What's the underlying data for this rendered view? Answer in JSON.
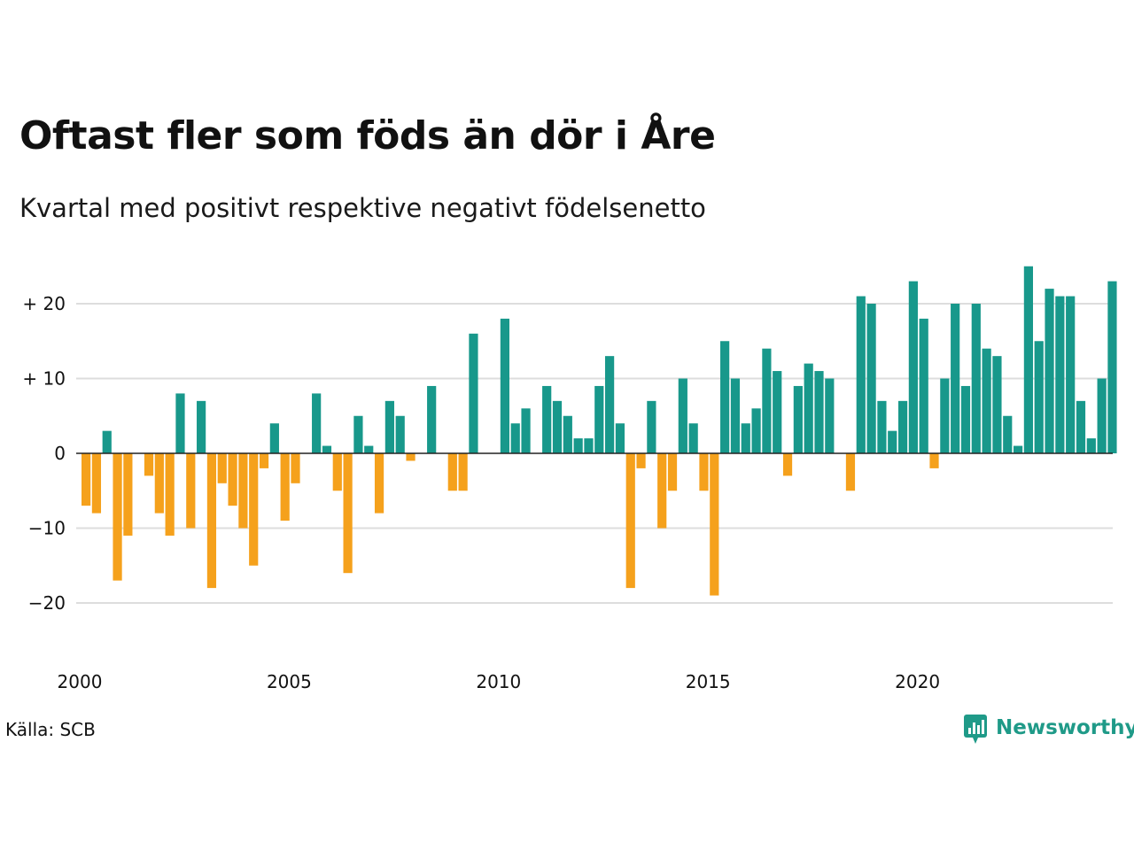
{
  "header": {
    "title": "Oftast fler som föds än dör i Åre",
    "subtitle": "Kvartal med positivt respektive negativt födelsenetto"
  },
  "footer": {
    "source": "Källa: SCB",
    "brand": "Newsworthy"
  },
  "colors": {
    "positive": "#18988b",
    "negative": "#f5a11c",
    "grid": "#dddddd",
    "zero_line": "#222222",
    "brand": "#1f9a88"
  },
  "chart_data": {
    "type": "bar",
    "title": "Oftast fler som föds än dör i Åre",
    "subtitle": "Kvartal med positivt respektive negativt födelsenetto",
    "xlabel": "",
    "ylabel": "",
    "x_start": "2000 Q1",
    "x_ticks": [
      "2000",
      "2005",
      "2010",
      "2015",
      "2020"
    ],
    "y_ticks": [
      {
        "value": 20,
        "label": "+ 20"
      },
      {
        "value": 10,
        "label": "+ 10"
      },
      {
        "value": 0,
        "label": "0"
      },
      {
        "value": -10,
        "label": "−10"
      },
      {
        "value": -20,
        "label": "−20"
      }
    ],
    "ylim": [
      -27,
      27
    ],
    "grid": true,
    "values": [
      -7,
      -8,
      3,
      -17,
      -11,
      0,
      -3,
      -8,
      -11,
      8,
      -10,
      7,
      -18,
      -4,
      -7,
      -10,
      -15,
      -2,
      4,
      -9,
      -4,
      0,
      8,
      1,
      -5,
      -16,
      5,
      1,
      -8,
      7,
      5,
      -1,
      0,
      9,
      0,
      -5,
      -5,
      16,
      0,
      0,
      18,
      4,
      6,
      0,
      9,
      7,
      5,
      2,
      2,
      9,
      13,
      4,
      -18,
      -2,
      7,
      -10,
      -5,
      10,
      4,
      -5,
      -19,
      15,
      10,
      4,
      6,
      14,
      11,
      -3,
      9,
      12,
      11,
      10,
      0,
      -5,
      21,
      20,
      7,
      3,
      7,
      23,
      18,
      -2,
      10,
      20,
      9,
      20,
      14,
      13,
      5,
      1,
      25,
      15,
      22,
      21,
      21,
      7,
      2,
      10,
      23
    ]
  }
}
